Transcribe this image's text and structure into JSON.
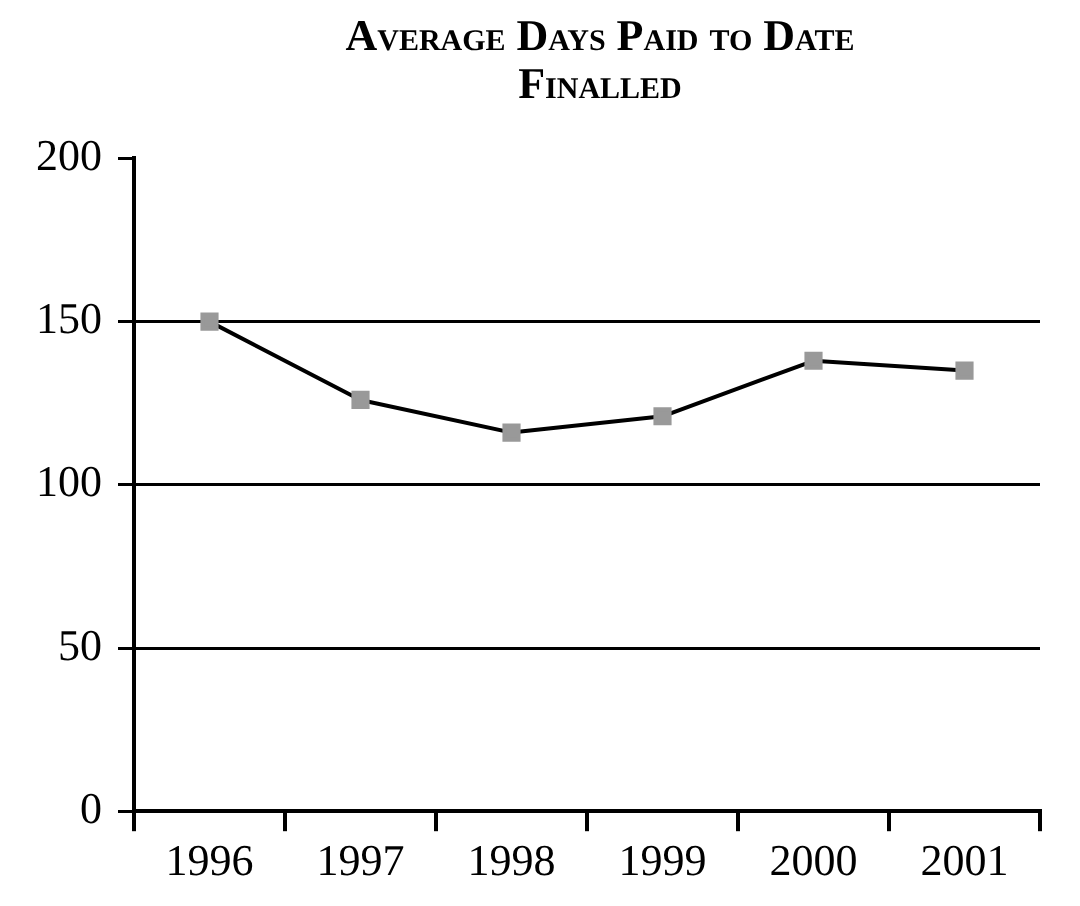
{
  "chart_data": {
    "type": "line",
    "title": "Average Days Paid to Date Finalled",
    "categories": [
      "1996",
      "1997",
      "1998",
      "1999",
      "2000",
      "2001"
    ],
    "series": [
      {
        "color": "#000000",
        "colors": [
          "#999999",
          "#999999",
          "#999999",
          "#999999",
          "#999999",
          "#999999"
        ],
        "values": [
          150,
          126,
          116,
          121,
          138,
          135
        ]
      }
    ],
    "ylim": [
      0,
      200
    ],
    "yticks": [
      0,
      50,
      100,
      150,
      200
    ],
    "grid": "y",
    "legend": false,
    "marker": "square",
    "line_style": "solid"
  }
}
